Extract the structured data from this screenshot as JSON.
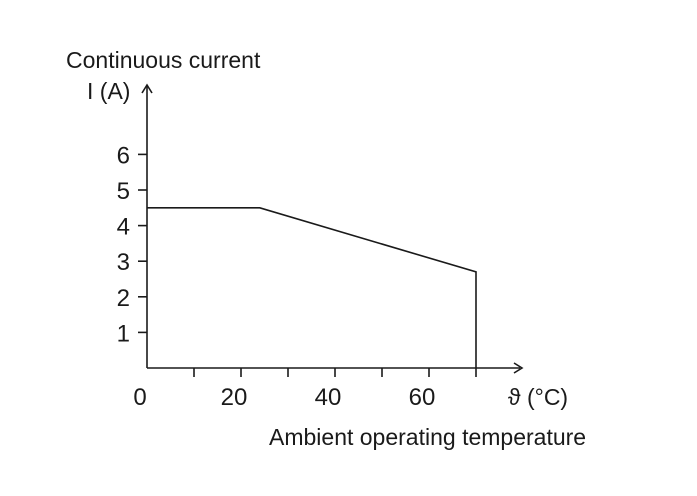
{
  "chart_data": {
    "type": "line",
    "title": "Continuous current",
    "ylabel": "I (A)",
    "xlabel": "Ambient operating temperature",
    "x_unit_label": "ϑ (°C)",
    "xlim": [
      0,
      80
    ],
    "ylim": [
      0,
      7
    ],
    "x_ticks": [
      0,
      10,
      20,
      30,
      40,
      50,
      60,
      70
    ],
    "x_tick_labels": [
      {
        "value": 0,
        "label": "0"
      },
      {
        "value": 20,
        "label": "20"
      },
      {
        "value": 40,
        "label": "40"
      },
      {
        "value": 60,
        "label": "60"
      }
    ],
    "y_ticks": [
      1,
      2,
      3,
      4,
      5,
      6
    ],
    "y_tick_labels": [
      {
        "value": 1,
        "label": "1"
      },
      {
        "value": 2,
        "label": "2"
      },
      {
        "value": 3,
        "label": "3"
      },
      {
        "value": 4,
        "label": "4"
      },
      {
        "value": 5,
        "label": "5"
      },
      {
        "value": 6,
        "label": "6"
      }
    ],
    "grid": false,
    "legend": "none",
    "series": [
      {
        "points": [
          {
            "x": 0,
            "y": 4.5
          },
          {
            "x": 24,
            "y": 4.5
          },
          {
            "x": 70,
            "y": 2.7
          },
          {
            "x": 70,
            "y": 0
          }
        ]
      }
    ]
  }
}
